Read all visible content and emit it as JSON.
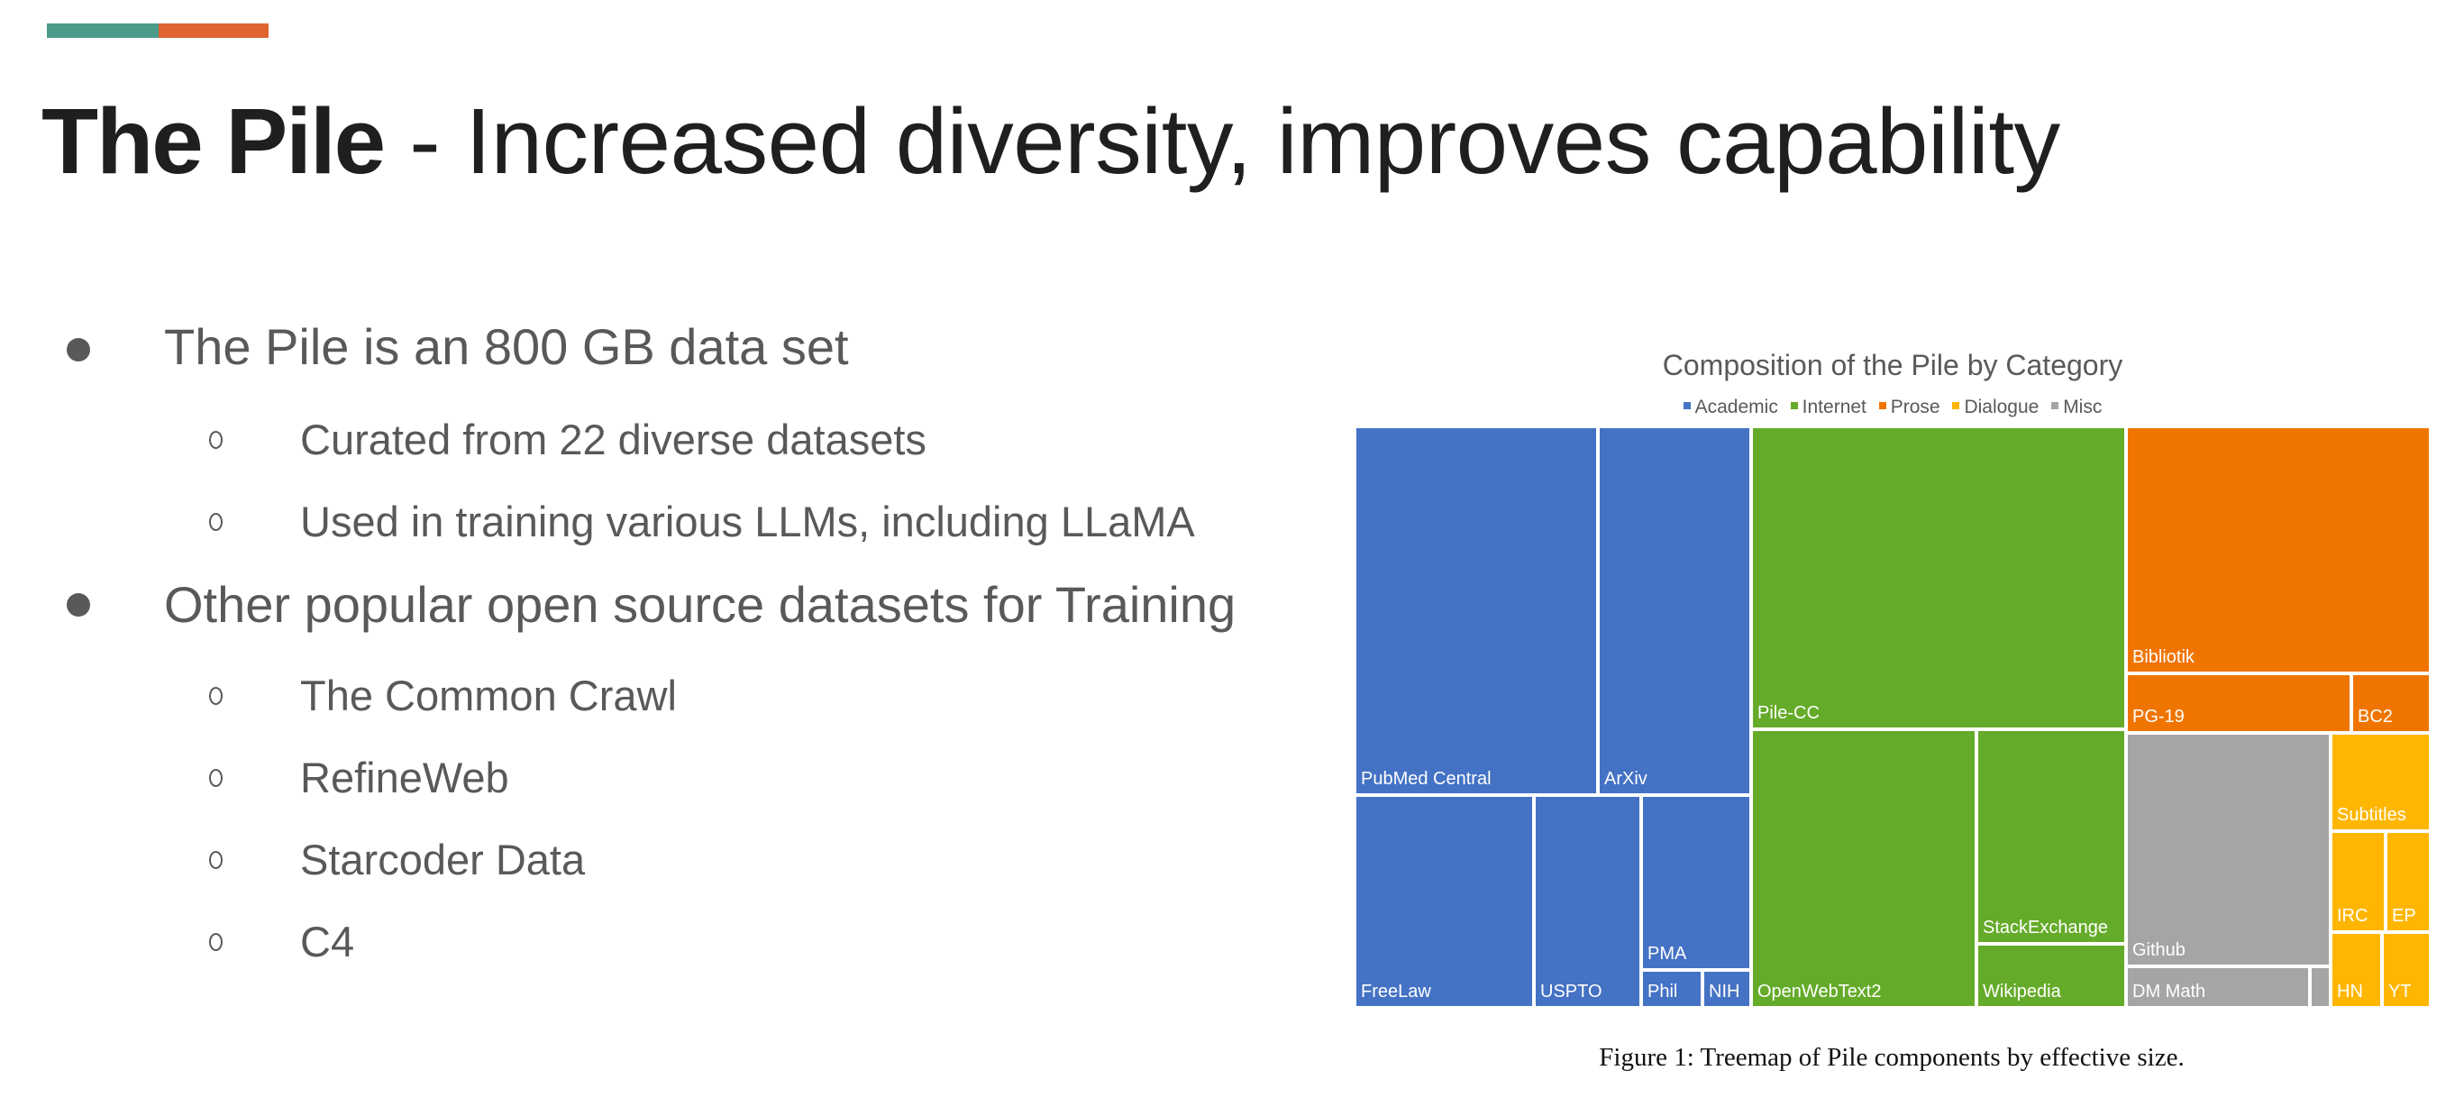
{
  "slide": {
    "accent_colors": [
      "#4a9a8a",
      "#de6430"
    ],
    "title_bold": "The Pile",
    "title_rest": " - Increased diversity, improves capability",
    "bullets": [
      {
        "text": "The Pile is an 800 GB data set",
        "children": [
          "Curated from 22 diverse datasets",
          "Used in training various LLMs, including LLaMA"
        ]
      },
      {
        "text": "Other popular open  source datasets for Training",
        "children": [
          "The Common Crawl",
          "RefineWeb",
          "Starcoder Data",
          "C4"
        ]
      }
    ],
    "bullet_icon": "filled-circle-bullet",
    "sub_bullet_icon": "hollow-circle-bullet"
  },
  "chart_data": {
    "type": "treemap",
    "title": "Composition of the Pile by Category",
    "value_unit": "percent of total effective size (estimated from area)",
    "legend_position": "top-center",
    "categories": [
      {
        "name": "Academic",
        "color": "#4472C4"
      },
      {
        "name": "Internet",
        "color": "#65AB2A"
      },
      {
        "name": "Prose",
        "color": "#F07400"
      },
      {
        "name": "Dialogue",
        "color": "#FFB600"
      },
      {
        "name": "Misc",
        "color": "#A5A5A5"
      }
    ],
    "items": [
      {
        "name": "PubMed Central",
        "category": "Academic",
        "value": 14.34
      },
      {
        "name": "ArXiv",
        "category": "Academic",
        "value": 9.03
      },
      {
        "name": "FreeLaw",
        "category": "Academic",
        "value": 6.1
      },
      {
        "name": "USPTO",
        "category": "Academic",
        "value": 3.65
      },
      {
        "name": "PMA",
        "category": "Academic",
        "value": 3.07
      },
      {
        "name": "Phil",
        "category": "Academic",
        "value": 0.37
      },
      {
        "name": "NIH",
        "category": "Academic",
        "value": 0.29
      },
      {
        "name": "Pile-CC",
        "category": "Internet",
        "value": 18.15
      },
      {
        "name": "OpenWebText2",
        "category": "Internet",
        "value": 10.03
      },
      {
        "name": "StackExchange",
        "category": "Internet",
        "value": 5.13
      },
      {
        "name": "Wikipedia",
        "category": "Internet",
        "value": 1.53
      },
      {
        "name": "Bibliotik",
        "category": "Prose",
        "value": 12.03
      },
      {
        "name": "PG-19",
        "category": "Prose",
        "value": 2.14
      },
      {
        "name": "BC2",
        "category": "Prose",
        "value": 0.75
      },
      {
        "name": "Github",
        "category": "Misc",
        "value": 7.63
      },
      {
        "name": "DM Math",
        "category": "Misc",
        "value": 1.22
      },
      {
        "name": "",
        "category": "Misc",
        "value": 0.14
      },
      {
        "name": "Subtitles",
        "category": "Dialogue",
        "value": 1.57
      },
      {
        "name": "IRC",
        "category": "Dialogue",
        "value": 0.89
      },
      {
        "name": "EP",
        "category": "Dialogue",
        "value": 0.73
      },
      {
        "name": "HN",
        "category": "Dialogue",
        "value": 0.62
      },
      {
        "name": "YT",
        "category": "Dialogue",
        "value": 0.59
      }
    ],
    "caption": "Figure 1: Treemap of Pile components by effective size."
  }
}
